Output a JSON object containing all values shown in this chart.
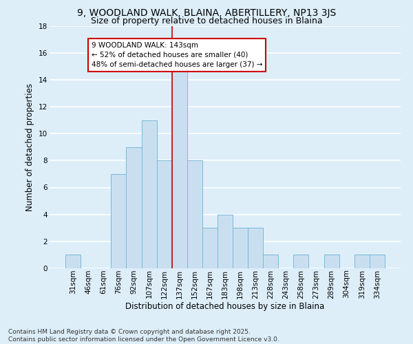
{
  "title1": "9, WOODLAND WALK, BLAINA, ABERTILLERY, NP13 3JS",
  "title2": "Size of property relative to detached houses in Blaina",
  "xlabel": "Distribution of detached houses by size in Blaina",
  "ylabel": "Number of detached properties",
  "categories": [
    "31sqm",
    "46sqm",
    "61sqm",
    "76sqm",
    "92sqm",
    "107sqm",
    "122sqm",
    "137sqm",
    "152sqm",
    "167sqm",
    "183sqm",
    "198sqm",
    "213sqm",
    "228sqm",
    "243sqm",
    "258sqm",
    "273sqm",
    "289sqm",
    "304sqm",
    "319sqm",
    "334sqm"
  ],
  "values": [
    1,
    0,
    0,
    7,
    9,
    11,
    8,
    15,
    8,
    3,
    4,
    3,
    3,
    1,
    0,
    1,
    0,
    1,
    0,
    1,
    1
  ],
  "bar_color": "#c9dff0",
  "bar_edge_color": "#7ab8d9",
  "background_color": "#ddeef9",
  "grid_color": "#ffffff",
  "annotation_text": "9 WOODLAND WALK: 143sqm\n← 52% of detached houses are smaller (40)\n48% of semi-detached houses are larger (37) →",
  "annotation_box_color": "#ffffff",
  "annotation_box_edge_color": "#cc0000",
  "vline_x_index": 7,
  "vline_color": "#cc0000",
  "ylim": [
    0,
    18
  ],
  "yticks": [
    0,
    2,
    4,
    6,
    8,
    10,
    12,
    14,
    16,
    18
  ],
  "footnote": "Contains HM Land Registry data © Crown copyright and database right 2025.\nContains public sector information licensed under the Open Government Licence v3.0.",
  "title1_fontsize": 10,
  "title2_fontsize": 9,
  "xlabel_fontsize": 8.5,
  "ylabel_fontsize": 8.5,
  "tick_fontsize": 7.5,
  "annotation_fontsize": 7.5,
  "footnote_fontsize": 6.5
}
